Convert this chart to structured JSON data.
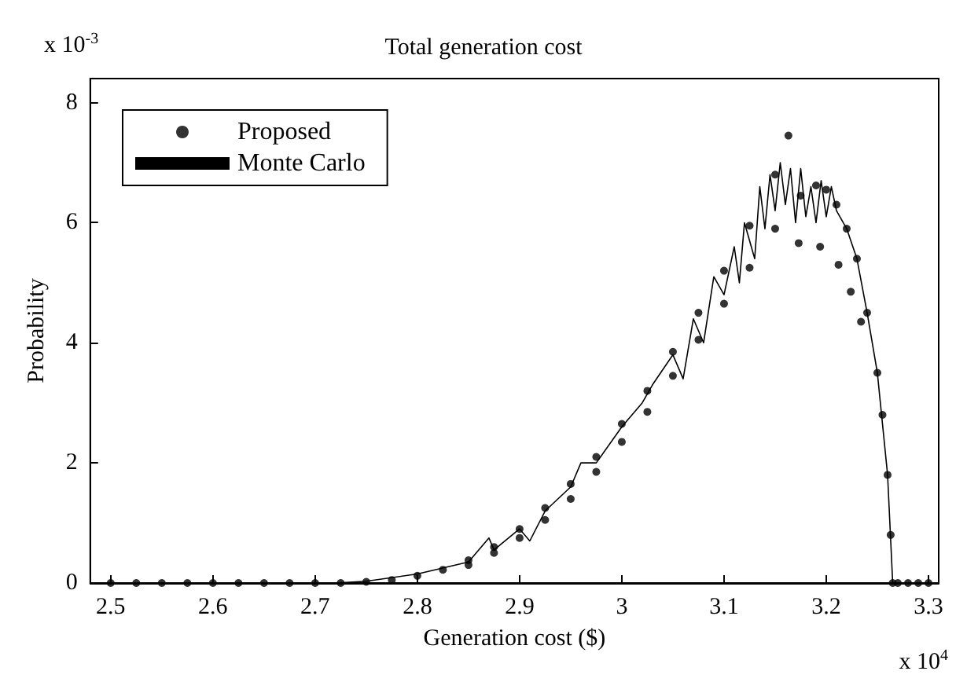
{
  "chart_data": {
    "type": "scatter",
    "title": "Total generation cost",
    "xlabel": "Generation cost ($)",
    "ylabel": "Probability",
    "annotations": [
      "x 10$^{-3}$",
      "x 10$^{4}$"
    ],
    "xlim": [
      2.48,
      3.31
    ],
    "xticks": [
      2.5,
      2.6,
      2.7,
      2.8,
      2.9,
      3,
      3.1,
      3.2,
      3.3
    ],
    "ylim": [
      0,
      8.4
    ],
    "yticks": [
      0,
      2,
      4,
      6,
      8
    ],
    "grid": false,
    "legend": "top left",
    "marker": "circle",
    "series": [
      {
        "name": "Proposed",
        "color": "#000000",
        "x": [
          2.5,
          2.525,
          2.55,
          2.575,
          2.6,
          2.625,
          2.65,
          2.675,
          2.7,
          2.725,
          2.75,
          2.775,
          2.8,
          2.825,
          2.85,
          2.875,
          2.9,
          2.925,
          2.95,
          2.975,
          3.0,
          3.025,
          3.05,
          3.075,
          3.1,
          3.125,
          3.15,
          3.163,
          2.85,
          2.875,
          2.9,
          2.925,
          2.95,
          2.975,
          3.0,
          3.025,
          3.05,
          3.075,
          3.1,
          3.125,
          3.15,
          3.175,
          3.19,
          3.2,
          3.21,
          3.22,
          3.23,
          3.24,
          3.25,
          3.255,
          3.26,
          3.263,
          3.265,
          3.173,
          3.194,
          3.212,
          3.224,
          3.234,
          3.27,
          3.28,
          3.29,
          3.3
        ],
        "values": [
          0,
          0,
          0,
          0,
          0,
          0,
          0,
          0,
          0,
          0,
          0.02,
          0.05,
          0.12,
          0.22,
          0.38,
          0.6,
          0.9,
          1.25,
          1.65,
          2.1,
          2.65,
          3.2,
          3.85,
          4.5,
          5.2,
          5.95,
          6.8,
          7.45,
          0.3,
          0.5,
          0.75,
          1.05,
          1.4,
          1.85,
          2.35,
          2.85,
          3.45,
          4.05,
          4.65,
          5.25,
          5.9,
          6.45,
          6.62,
          6.55,
          6.3,
          5.9,
          5.4,
          4.5,
          3.5,
          2.8,
          1.8,
          0.8,
          0,
          5.66,
          5.6,
          5.3,
          4.85,
          4.35,
          0,
          0,
          0,
          0
        ]
      },
      {
        "name": "Monte Carlo",
        "type": "line",
        "color": "#000000",
        "marker": "none",
        "x": [
          2.5,
          2.72,
          2.75,
          2.8,
          2.85,
          2.87,
          2.875,
          2.9,
          2.91,
          2.925,
          2.95,
          2.96,
          2.975,
          3.0,
          3.02,
          3.03,
          3.05,
          3.06,
          3.07,
          3.08,
          3.09,
          3.1,
          3.11,
          3.115,
          3.12,
          3.13,
          3.135,
          3.14,
          3.145,
          3.15,
          3.155,
          3.16,
          3.165,
          3.17,
          3.175,
          3.18,
          3.185,
          3.19,
          3.195,
          3.2,
          3.205,
          3.21,
          3.22,
          3.23,
          3.24,
          3.25,
          3.26,
          3.265,
          3.3
        ],
        "values": [
          0,
          0,
          0.03,
          0.15,
          0.35,
          0.75,
          0.55,
          0.9,
          0.7,
          1.2,
          1.6,
          2.0,
          2.0,
          2.6,
          3.0,
          3.3,
          3.8,
          3.4,
          4.4,
          4.0,
          5.1,
          4.8,
          5.6,
          5.0,
          6.0,
          5.4,
          6.6,
          5.9,
          6.8,
          6.2,
          7.0,
          6.3,
          6.9,
          6.0,
          6.9,
          6.1,
          6.6,
          6.0,
          6.7,
          6.1,
          6.6,
          6.2,
          5.9,
          5.4,
          4.5,
          3.5,
          1.8,
          0,
          0
        ]
      }
    ]
  }
}
